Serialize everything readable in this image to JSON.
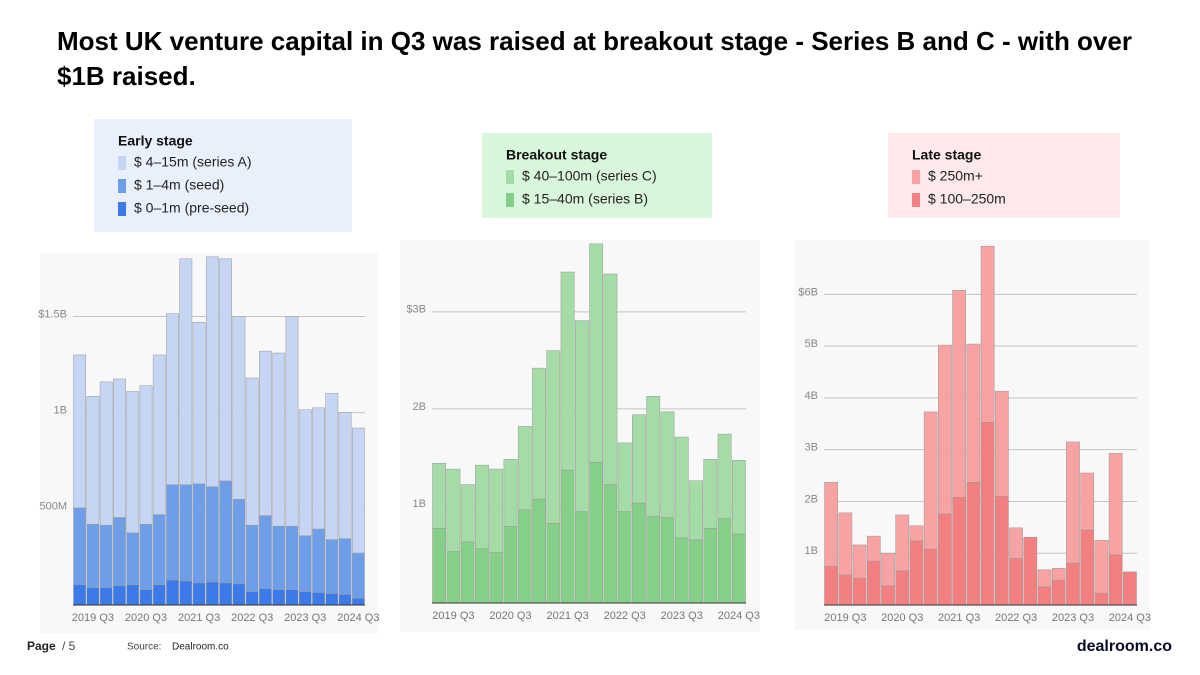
{
  "title": "Most UK venture capital in Q3 was raised at breakout stage - Series B and C - with over $1B raised.",
  "page_label": "Page",
  "page_count": "/ 5",
  "source_label": "Source:",
  "source": "Dealroom.co",
  "logo": "dealroom.co",
  "chart_data": [
    {
      "type": "bar",
      "stacked": true,
      "legend_title": "Early stage",
      "legend_color": "#e9f0fc",
      "categories": [
        null,
        "2019 Q3",
        null,
        null,
        null,
        "2020 Q3",
        null,
        null,
        null,
        "2021 Q3",
        null,
        null,
        null,
        "2022 Q3",
        null,
        null,
        null,
        "2023 Q3",
        null,
        null,
        null,
        "2024 Q3"
      ],
      "series": [
        {
          "name": "$ 4–15m (series A)",
          "color": "#c5d5f3",
          "values": [
            795,
            665,
            745,
            720,
            735,
            720,
            830,
            890,
            1175,
            840,
            1195,
            1155,
            950,
            765,
            855,
            900,
            1090,
            655,
            630,
            760,
            655,
            650
          ]
        },
        {
          "name": "$ 1–4m (seed)",
          "color": "#6f9ee9",
          "values": [
            400,
            330,
            325,
            355,
            270,
            340,
            365,
            495,
            500,
            515,
            495,
            530,
            440,
            345,
            380,
            330,
            330,
            290,
            330,
            280,
            290,
            235
          ]
        },
        {
          "name": "$ 0–1m (pre-seed)",
          "color": "#3b7ae8",
          "values": [
            105,
            90,
            90,
            100,
            105,
            80,
            105,
            130,
            125,
            115,
            120,
            115,
            110,
            70,
            85,
            80,
            80,
            70,
            65,
            60,
            55,
            35
          ]
        }
      ],
      "ylim": [
        0,
        1830
      ],
      "yticks": [
        {
          "value": 500,
          "label": "500M"
        },
        {
          "value": 1000,
          "label": "1B"
        },
        {
          "value": 1500,
          "label": "$1.5B"
        }
      ],
      "grid": true
    },
    {
      "type": "bar",
      "stacked": true,
      "legend_title": "Breakout stage",
      "legend_color": "#d9f5db",
      "categories": [
        null,
        "2019 Q3",
        null,
        null,
        null,
        "2020 Q3",
        null,
        null,
        null,
        "2021 Q3",
        null,
        null,
        null,
        "2022 Q3",
        null,
        null,
        null,
        "2023 Q3",
        null,
        null,
        null,
        "2024 Q3"
      ],
      "series": [
        {
          "name": "$ 40–100m (series C)",
          "color": "#a4dba6",
          "values": [
            670,
            850,
            590,
            860,
            860,
            690,
            860,
            1350,
            1780,
            2040,
            1970,
            2250,
            2170,
            710,
            910,
            1240,
            1090,
            1040,
            610,
            710,
            870,
            760
          ]
        },
        {
          "name": "$ 15–40m (series B)",
          "color": "#86cf88",
          "values": [
            770,
            530,
            630,
            560,
            520,
            790,
            960,
            1070,
            820,
            1370,
            940,
            1450,
            1220,
            940,
            1030,
            890,
            880,
            670,
            650,
            770,
            870,
            710
          ]
        }
      ],
      "ylim": [
        0,
        3740
      ],
      "yticks": [
        {
          "value": 1000,
          "label": "1B"
        },
        {
          "value": 2000,
          "label": "2B"
        },
        {
          "value": 3000,
          "label": "$3B"
        }
      ],
      "grid": true
    },
    {
      "type": "bar",
      "stacked": true,
      "legend_title": "Late stage",
      "legend_color": "#fde9e9",
      "categories": [
        null,
        "2019 Q3",
        null,
        null,
        null,
        "2020 Q3",
        null,
        null,
        null,
        "2021 Q3",
        null,
        null,
        null,
        "2022 Q3",
        null,
        null,
        null,
        "2023 Q3",
        null,
        null,
        null,
        "2024 Q3"
      ],
      "series": [
        {
          "name": "$ 250m+",
          "color": "#f8a3a3",
          "values": [
            1620,
            1200,
            640,
            480,
            630,
            1080,
            290,
            2650,
            3260,
            4000,
            2670,
            3400,
            2030,
            590,
            0,
            330,
            230,
            2340,
            1100,
            1020,
            1960,
            0
          ]
        },
        {
          "name": "$ 100–250m",
          "color": "#f47f80",
          "values": [
            750,
            580,
            520,
            850,
            370,
            660,
            1240,
            1080,
            1760,
            2080,
            2370,
            3530,
            2100,
            900,
            1310,
            350,
            480,
            810,
            1450,
            230,
            970,
            640
          ]
        }
      ],
      "ylim": [
        0,
        7050
      ],
      "yticks": [
        {
          "value": 1000,
          "label": "1B"
        },
        {
          "value": 2000,
          "label": "2B"
        },
        {
          "value": 3000,
          "label": "3B"
        },
        {
          "value": 4000,
          "label": "4B"
        },
        {
          "value": 5000,
          "label": "5B"
        },
        {
          "value": 6000,
          "label": "$6B"
        }
      ],
      "grid": true
    }
  ]
}
